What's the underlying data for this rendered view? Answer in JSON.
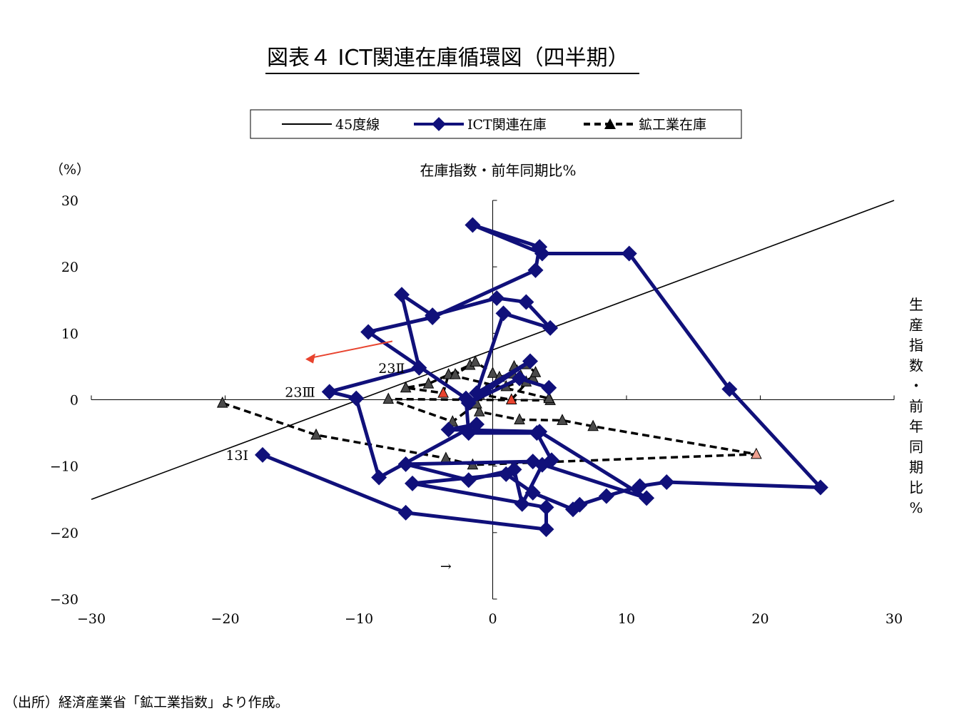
{
  "title": "図表４ ICT関連在庫循環図（四半期）",
  "source": "（出所）経済産業省「鉱工業指数」より作成。",
  "chart_data": {
    "type": "scatter",
    "unit_label": "（%）",
    "xlabel": "在庫指数・前年同期比%",
    "ylabel": "生産指数・前年同期比%",
    "xlim": [
      -30,
      30
    ],
    "ylim": [
      -30,
      30
    ],
    "x_ticks": [
      "−30",
      "−20",
      "−10",
      "0",
      "10",
      "20",
      "30"
    ],
    "y_ticks": [
      "30",
      "20",
      "10",
      "0",
      "−10",
      "−20",
      "−30"
    ],
    "grid": false,
    "legend_position": "top",
    "legend": [
      "45度線",
      "ICT関連在庫",
      "鉱工業在庫"
    ],
    "colors": {
      "ict": "#10107a",
      "mining": "#000000",
      "highlight_red": "#e8432e",
      "highlight_pink": "#f0a090",
      "arrow": "#e8432e"
    },
    "annotations": [
      {
        "text": "13Ⅰ",
        "x": -17.2,
        "y": -8.3
      },
      {
        "text": "23Ⅱ",
        "x": -5.5,
        "y": 4.8
      },
      {
        "text": "23Ⅲ",
        "x": -12.2,
        "y": 1.2
      },
      {
        "text": "→",
        "x": -3.5,
        "y": -25
      }
    ],
    "series": [
      {
        "name": "45度線",
        "type": "line",
        "x": [
          -30,
          30
        ],
        "y": [
          -15,
          30
        ]
      },
      {
        "name": "ICT関連在庫",
        "x": [
          -17.2,
          -6.5,
          4.0,
          4.0,
          -6.0,
          1.0,
          3.0,
          6.0,
          6.5,
          8.5,
          11.0,
          13.0,
          24.5,
          17.7,
          10.2,
          3.7,
          -1.5,
          3.5,
          3.2,
          -4.5,
          -9.3,
          -2.0,
          -1.8,
          3.3,
          4.4,
          3.7,
          2.2,
          1.6,
          -1.8,
          -6.5,
          3.0,
          11.5,
          3.5,
          -3.3,
          -1.2,
          -8.5,
          -10.2,
          -12.2,
          -5.5,
          -6.8,
          -4.5,
          0.3,
          2.5,
          4.3,
          0.8,
          -1.2,
          2.8,
          -1.8,
          2.0,
          4.2
        ],
        "y": [
          -8.3,
          -17.0,
          -19.5,
          -16.2,
          -12.6,
          -11.2,
          -14.0,
          -16.5,
          -15.8,
          -14.5,
          -13.0,
          -12.4,
          -13.2,
          1.6,
          22.0,
          22.0,
          26.3,
          23.0,
          19.5,
          12.4,
          10.2,
          0.2,
          -5.0,
          -5.0,
          -9.1,
          -9.8,
          -15.7,
          -10.5,
          -12.1,
          -9.7,
          -9.3,
          -14.8,
          -4.8,
          -4.5,
          -3.7,
          -11.7,
          0.2,
          1.2,
          4.8,
          15.8,
          12.7,
          15.3,
          14.7,
          10.8,
          13.0,
          1.0,
          5.8,
          -0.5,
          3.2,
          1.8
        ]
      },
      {
        "name": "鉱工業在庫",
        "x": [
          -20.2,
          -13.2,
          -3.5,
          -1.5,
          19.7,
          7.5,
          5.2,
          2.0,
          -1.0,
          -1.2,
          -3.0,
          -7.8,
          4.3,
          4.2,
          -3.3,
          -3.7,
          -6.5,
          -4.8,
          -1.7,
          -2.8,
          -1.3,
          0.0,
          0.5,
          1.5,
          2.5,
          3.0,
          1.0,
          -0.5,
          -1.0,
          1.4,
          3.2,
          2.5,
          1.6,
          2.1
        ],
        "y": [
          -0.5,
          -5.3,
          -8.8,
          -9.8,
          -8.2,
          -4.0,
          -3.1,
          -3.0,
          -1.8,
          -0.6,
          -3.3,
          0.1,
          -0.1,
          0.2,
          3.8,
          1.0,
          1.8,
          2.4,
          5.2,
          3.8,
          5.7,
          4.0,
          3.4,
          3.9,
          2.7,
          3.3,
          2.0,
          1.4,
          0.8,
          0.0,
          4.1,
          5.3,
          5.0,
          3.6
        ],
        "highlights": {
          "red": [
            15,
            29
          ],
          "pink": [
            4
          ]
        }
      }
    ]
  }
}
